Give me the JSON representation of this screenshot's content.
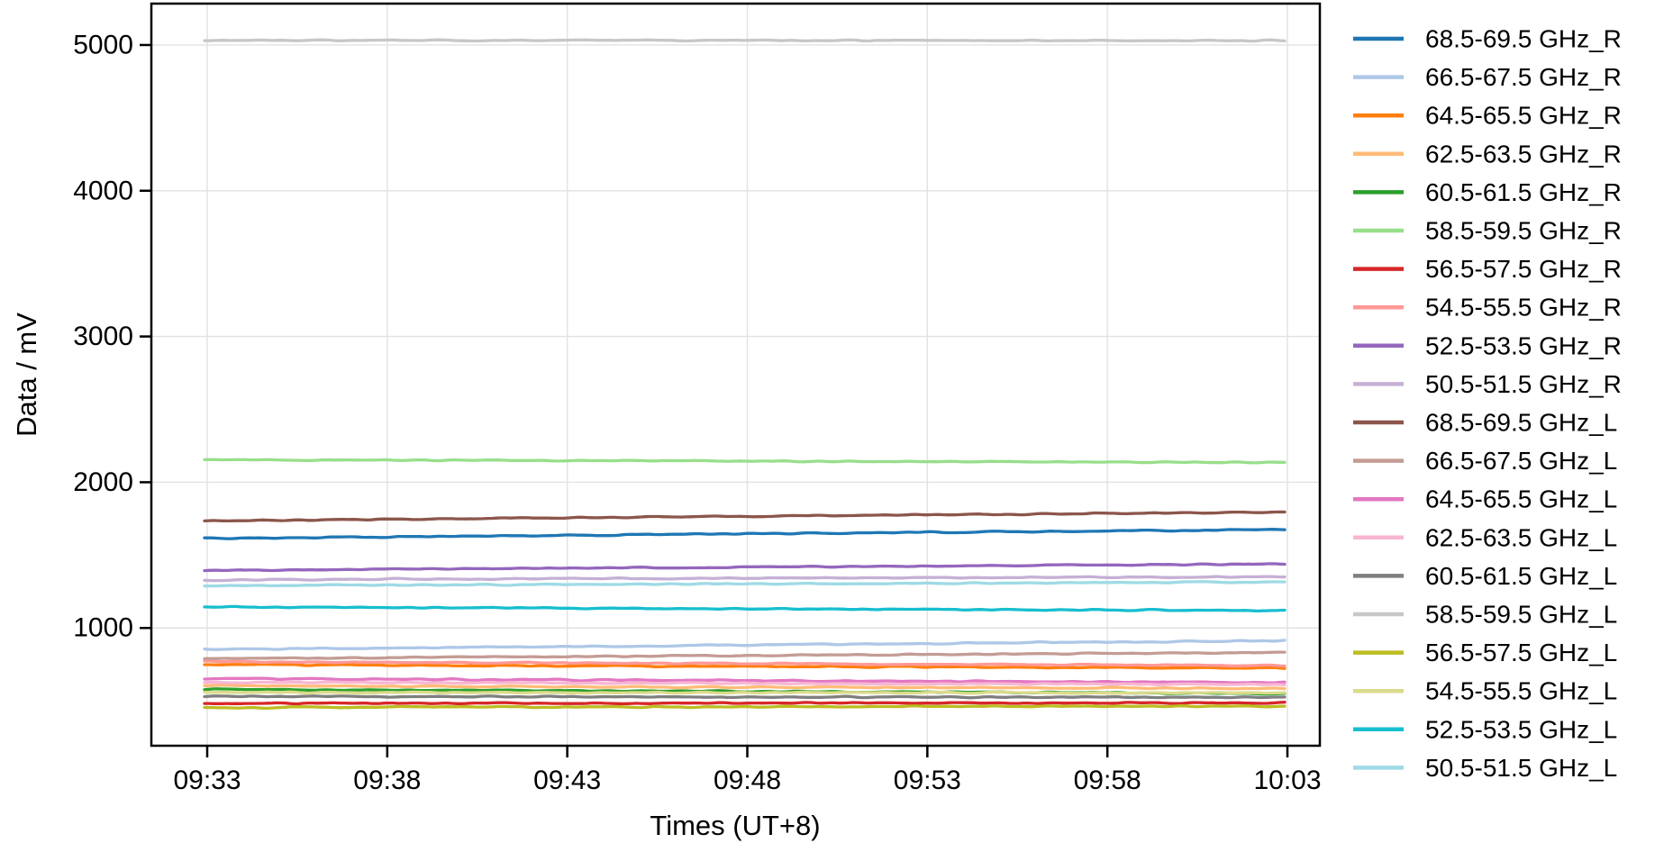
{
  "chart_data": {
    "type": "line",
    "title": "",
    "xlabel": "Times (UT+8)",
    "ylabel": "Data / mV",
    "x_tick_labels": [
      "09:33",
      "09:38",
      "09:43",
      "09:48",
      "09:53",
      "09:58",
      "10:03"
    ],
    "y_ticks": [
      1000,
      2000,
      3000,
      4000,
      5000
    ],
    "ylim": [
      192,
      5284
    ],
    "grid": true,
    "legend_position": "right",
    "colors": {
      "background": "#ffffff",
      "axis": "#000000",
      "grid": "#e2e2e2"
    },
    "x": [
      "09:33",
      "09:38",
      "09:43",
      "09:48",
      "09:53",
      "09:58",
      "10:03"
    ],
    "series": [
      {
        "name": "68.5-69.5 GHz_R",
        "color": "#1f77b4",
        "values": [
          1614,
          1625,
          1636,
          1646,
          1656,
          1666,
          1676
        ]
      },
      {
        "name": "66.5-67.5 GHz_R",
        "color": "#aec7e8",
        "values": [
          852,
          863,
          873,
          883,
          893,
          903,
          913
        ]
      },
      {
        "name": "64.5-65.5 GHz_R",
        "color": "#ff7f0e",
        "values": [
          748,
          744,
          740,
          736,
          732,
          728,
          724
        ]
      },
      {
        "name": "62.5-63.5 GHz_R",
        "color": "#ffbb78",
        "values": [
          603,
          600,
          597,
          594,
          591,
          588,
          585
        ]
      },
      {
        "name": "60.5-61.5 GHz_R",
        "color": "#2ca02c",
        "values": [
          578,
          573,
          569,
          564,
          560,
          555,
          551
        ]
      },
      {
        "name": "58.5-59.5 GHz_R",
        "color": "#98df8a",
        "values": [
          2155,
          2152,
          2149,
          2146,
          2143,
          2139,
          2136
        ]
      },
      {
        "name": "56.5-57.5 GHz_R",
        "color": "#d62728",
        "values": [
          483,
          484,
          484,
          485,
          486,
          486,
          487
        ]
      },
      {
        "name": "54.5-55.5 GHz_R",
        "color": "#ff9896",
        "values": [
          770,
          765,
          761,
          756,
          751,
          747,
          742
        ]
      },
      {
        "name": "52.5-53.5 GHz_R",
        "color": "#9467bd",
        "values": [
          1394,
          1402,
          1410,
          1417,
          1425,
          1432,
          1439
        ]
      },
      {
        "name": "50.5-51.5 GHz_R",
        "color": "#c5b0d5",
        "values": [
          1330,
          1334,
          1338,
          1341,
          1345,
          1348,
          1351
        ]
      },
      {
        "name": "68.5-69.5 GHz_L",
        "color": "#8c564b",
        "values": [
          1735,
          1746,
          1757,
          1766,
          1776,
          1786,
          1796
        ]
      },
      {
        "name": "66.5-67.5 GHz_L",
        "color": "#c49c94",
        "values": [
          790,
          797,
          804,
          811,
          818,
          824,
          830
        ]
      },
      {
        "name": "64.5-65.5 GHz_L",
        "color": "#e377c2",
        "values": [
          652,
          648,
          643,
          639,
          635,
          630,
          626
        ]
      },
      {
        "name": "62.5-63.5 GHz_L",
        "color": "#f7b6d2",
        "values": [
          628,
          625,
          623,
          620,
          617,
          615,
          612
        ]
      },
      {
        "name": "60.5-61.5 GHz_L",
        "color": "#7f7f7f",
        "values": [
          530,
          529,
          528,
          527,
          526,
          525,
          524
        ]
      },
      {
        "name": "58.5-59.5 GHz_L",
        "color": "#c7c7c7",
        "values": [
          5032,
          5032,
          5031,
          5031,
          5031,
          5030,
          5030
        ]
      },
      {
        "name": "56.5-57.5 GHz_L",
        "color": "#bcbd22",
        "values": [
          454,
          456,
          458,
          459,
          461,
          463,
          465
        ]
      },
      {
        "name": "54.5-55.5 GHz_L",
        "color": "#dbdb8d",
        "values": [
          558,
          557,
          557,
          556,
          556,
          555,
          555
        ]
      },
      {
        "name": "52.5-53.5 GHz_L",
        "color": "#17becf",
        "values": [
          1144,
          1140,
          1136,
          1132,
          1128,
          1123,
          1119
        ]
      },
      {
        "name": "50.5-51.5 GHz_L",
        "color": "#9edae5",
        "values": [
          1289,
          1294,
          1298,
          1303,
          1307,
          1311,
          1315
        ]
      }
    ]
  }
}
